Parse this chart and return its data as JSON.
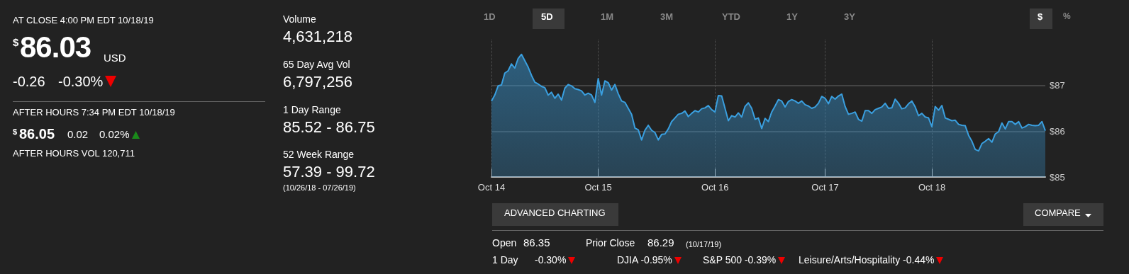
{
  "chart_data": {
    "type": "area",
    "annotations": [
      "AT CLOSE 4:00 PM EDT 10/18/19",
      "$",
      "86.03",
      "USD",
      "-0.26",
      "-0.30%",
      "AFTER HOURS 7:34 PM EDT 10/18/19",
      "$",
      "86.05",
      "0.02",
      "0.02%",
      "AFTER HOURS VOL 120,711",
      "Volume",
      "4,631,218",
      "65 Day Avg Vol",
      "6,797,256",
      "1 Day Range",
      "85.52 - 86.75",
      "52 Week Range",
      "57.39 - 99.72",
      "(10/26/18 - 07/26/19)",
      "1D",
      "5D",
      "1M",
      "3M",
      "YTD",
      "1Y",
      "3Y",
      "$",
      "%",
      "ADVANCED CHARTING",
      "COMPARE",
      "Open",
      "86.35",
      "Prior Close",
      "86.29",
      "(10/17/19)",
      "1 Day",
      "-0.30%",
      "DJIA -0.95%",
      "S&P 500 -0.39%",
      "Leisure/Arts/Hospitality -0.44%"
    ],
    "categories": [
      "Oct 14",
      null,
      null,
      null,
      null,
      null,
      null,
      null,
      null,
      null,
      null,
      null,
      null,
      null,
      null,
      null,
      null,
      null,
      null,
      null,
      null,
      null,
      null,
      null,
      null,
      null,
      null,
      null,
      null,
      null,
      null,
      null,
      "Oct 15",
      null,
      null,
      null,
      null,
      null,
      null,
      null,
      null,
      null,
      null,
      null,
      null,
      null,
      null,
      null,
      null,
      null,
      null,
      null,
      null,
      null,
      null,
      null,
      null,
      null,
      null,
      null,
      null,
      null,
      null,
      null,
      null,
      null,
      null,
      "Oct 16",
      null,
      null,
      null,
      null,
      null,
      null,
      null,
      null,
      null,
      null,
      null,
      null,
      null,
      null,
      null,
      null,
      null,
      null,
      null,
      null,
      null,
      null,
      null,
      null,
      null,
      null,
      null,
      null,
      null,
      null,
      null,
      null,
      "Oct 17",
      null,
      null,
      null,
      null,
      null,
      null,
      null,
      null,
      null,
      null,
      null,
      null,
      null,
      null,
      null,
      null,
      null,
      null,
      null,
      null,
      null,
      null,
      null,
      null,
      null,
      null,
      null,
      null,
      null,
      null,
      null,
      "Oct 18",
      null,
      null,
      null,
      null,
      null,
      null,
      null,
      null,
      null,
      null,
      null,
      null,
      null,
      null,
      null,
      null,
      null,
      null,
      null,
      null,
      null,
      null,
      null,
      null,
      null,
      null,
      null,
      null,
      null,
      null,
      null,
      null,
      null,
      null
    ],
    "values": [
      86.66,
      86.79,
      86.99,
      87.01,
      87.27,
      87.32,
      87.47,
      87.38,
      87.59,
      87.68,
      87.54,
      87.4,
      87.22,
      87.07,
      87.03,
      86.98,
      86.95,
      86.79,
      86.85,
      86.72,
      86.81,
      86.68,
      86.94,
      87.02,
      86.99,
      86.93,
      86.91,
      86.88,
      86.79,
      86.83,
      86.79,
      86.63,
      87.15,
      86.79,
      87.1,
      87.06,
      86.9,
      87.02,
      86.82,
      86.66,
      86.63,
      86.5,
      86.37,
      86.07,
      86.03,
      85.81,
      86.02,
      86.13,
      86.02,
      85.97,
      85.81,
      85.93,
      85.94,
      86.05,
      86.21,
      86.29,
      86.37,
      86.39,
      86.44,
      86.32,
      86.39,
      86.45,
      86.42,
      86.49,
      86.51,
      86.56,
      86.47,
      86.42,
      86.78,
      86.77,
      86.5,
      86.23,
      86.34,
      86.31,
      86.4,
      86.31,
      86.54,
      86.62,
      86.5,
      86.26,
      86.29,
      86.06,
      86.28,
      86.21,
      86.42,
      86.55,
      86.69,
      86.66,
      86.53,
      86.65,
      86.69,
      86.66,
      86.61,
      86.66,
      86.58,
      86.55,
      86.5,
      86.53,
      86.61,
      86.76,
      86.72,
      86.6,
      86.76,
      86.7,
      86.77,
      86.81,
      86.54,
      86.37,
      86.39,
      86.42,
      86.26,
      86.22,
      86.45,
      86.45,
      86.39,
      86.47,
      86.5,
      86.53,
      86.61,
      86.5,
      86.51,
      86.7,
      86.61,
      86.49,
      86.51,
      86.6,
      86.66,
      86.53,
      86.34,
      86.39,
      86.31,
      86.29,
      86.1,
      86.54,
      86.46,
      86.56,
      86.29,
      86.26,
      86.23,
      86.24,
      86.15,
      86.13,
      86.12,
      85.91,
      85.78,
      85.6,
      85.57,
      85.73,
      85.78,
      85.84,
      85.76,
      85.94,
      85.99,
      86.18,
      86.05,
      86.21,
      86.21,
      86.15,
      86.21,
      86.07,
      86.1,
      86.15,
      86.13,
      86.12,
      86.13,
      86.21,
      86.01
    ],
    "color": "#3a9fdf",
    "ylim": [
      85,
      88
    ],
    "yticks": [
      {
        "value": 85,
        "label": "$85"
      },
      {
        "value": 86,
        "label": "$86"
      },
      {
        "value": 87,
        "label": "$87"
      }
    ],
    "grid": true,
    "marker": "none"
  }
}
